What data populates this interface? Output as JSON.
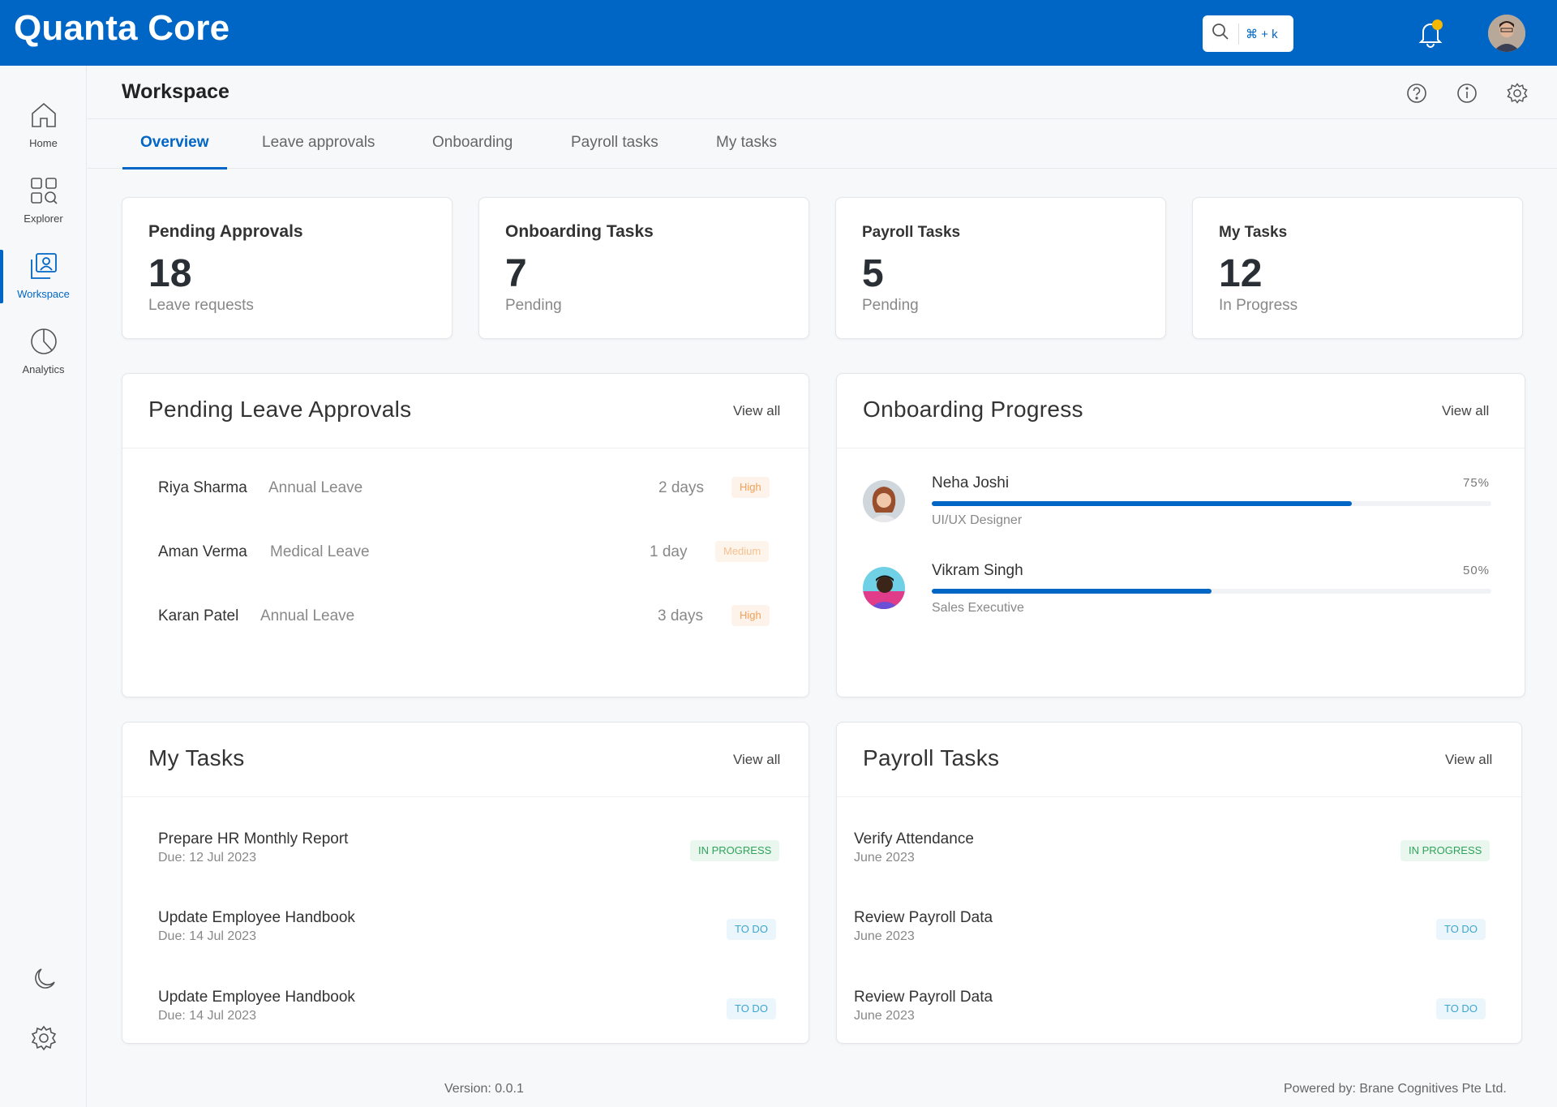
{
  "app": {
    "title": "Quanta Core"
  },
  "topbar": {
    "search_shortcut": "⌘ + k",
    "notification_dot_color": "#f5b800",
    "brand_color": "#0066c6"
  },
  "sidebar": {
    "items": [
      {
        "label": "Home",
        "icon": "home-icon"
      },
      {
        "label": "Explorer",
        "icon": "explorer-icon"
      },
      {
        "label": "Workspace",
        "icon": "workspace-icon",
        "active": true
      },
      {
        "label": "Analytics",
        "icon": "analytics-icon"
      }
    ],
    "bottom_icons": [
      "moon-icon",
      "settings-icon"
    ]
  },
  "header": {
    "title": "Workspace",
    "icons": [
      "help-icon",
      "info-icon",
      "settings-icon"
    ]
  },
  "tabs": [
    {
      "label": "Overview",
      "active": true
    },
    {
      "label": "Leave approvals"
    },
    {
      "label": "Onboarding"
    },
    {
      "label": "Payroll tasks"
    },
    {
      "label": "My tasks"
    }
  ],
  "stats": [
    {
      "label": "Pending Approvals",
      "value": "18",
      "sub": "Leave requests"
    },
    {
      "label": "Onboarding Tasks",
      "value": "7",
      "sub": "Pending"
    },
    {
      "label": "Payroll Tasks",
      "value": "5",
      "sub": "Pending"
    },
    {
      "label": "My Tasks",
      "value": "12",
      "sub": "In Progress"
    }
  ],
  "leave_panel": {
    "title": "Pending Leave Approvals",
    "view_all": "View all",
    "rows": [
      {
        "name": "Riya Sharma",
        "type": "Annual Leave",
        "duration": "2 days",
        "priority": "High"
      },
      {
        "name": "Aman Verma",
        "type": "Medical Leave",
        "duration": "1 day",
        "priority": "Medium"
      },
      {
        "name": "Karan Patel",
        "type": "Annual Leave",
        "duration": "3 days",
        "priority": "High"
      }
    ]
  },
  "onboarding_panel": {
    "title": "Onboarding Progress",
    "view_all": "View all",
    "people": [
      {
        "name": "Neha Joshi",
        "role": "UI/UX Designer",
        "percent_label": "75%",
        "progress": 0.75
      },
      {
        "name": "Vikram Singh",
        "role": "Sales Executive",
        "percent_label": "50%",
        "progress": 0.5
      }
    ]
  },
  "mytasks_panel": {
    "title": "My Tasks",
    "view_all": "View all",
    "tasks": [
      {
        "title": "Prepare HR Monthly Report",
        "due": "Due: 12 Jul 2023",
        "status": "IN PROGRESS"
      },
      {
        "title": "Update Employee Handbook",
        "due": "Due: 14 Jul 2023",
        "status": "TO DO"
      },
      {
        "title": "Update Employee Handbook",
        "due": "Due: 14 Jul 2023",
        "status": "TO DO"
      }
    ]
  },
  "payroll_panel": {
    "title": "Payroll Tasks",
    "view_all": "View all",
    "tasks": [
      {
        "title": "Verify Attendance",
        "period": "June 2023",
        "status": "IN PROGRESS"
      },
      {
        "title": "Review Payroll Data",
        "period": "June 2023",
        "status": "TO DO"
      },
      {
        "title": "Review Payroll Data",
        "period": "June 2023",
        "status": "TO DO"
      }
    ]
  },
  "footer": {
    "version": "Version: 0.0.1",
    "powered_by": "Powered by:  Brane Cognitives Pte Ltd."
  }
}
